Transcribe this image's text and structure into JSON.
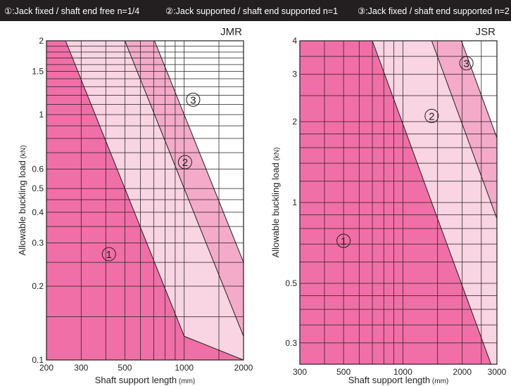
{
  "legend": [
    "①:Jack fixed / shaft end free   n=1/4",
    "②:Jack supported / shaft end supported   n=1",
    "③:Jack fixed / shaft end supported   n=2"
  ],
  "colors": {
    "header_bg": "#231f20",
    "region_1": "#f06fa6",
    "region_2": "#f9d4e2",
    "region_3": "#f4aac9",
    "grid": "#231f20"
  },
  "chart_data": [
    {
      "type": "area",
      "title": "JMR",
      "xlabel": "Shaft support length",
      "xunit": "(mm)",
      "ylabel": "Allowable buckling load",
      "yunit": "(kN)",
      "xscale": "log",
      "yscale": "log",
      "xlim": [
        200,
        2000
      ],
      "ylim": [
        0.1,
        2
      ],
      "x_ticks": [
        "200",
        "300",
        "500",
        "1000",
        "2000"
      ],
      "x_tick_values": [
        200,
        300,
        500,
        1000,
        2000
      ],
      "y_ticks": [
        "0.1",
        "0.2",
        "0.3",
        "0.4",
        "0.5",
        "0.6",
        "1",
        "1.5",
        "2"
      ],
      "y_tick_values": [
        0.1,
        0.2,
        0.3,
        0.4,
        0.5,
        0.6,
        1,
        1.5,
        2
      ],
      "x_grid": [
        200,
        300,
        400,
        500,
        600,
        700,
        800,
        900,
        1000,
        1500,
        2000
      ],
      "y_grid": [
        0.1,
        0.15,
        0.2,
        0.25,
        0.3,
        0.35,
        0.4,
        0.45,
        0.5,
        0.6,
        0.7,
        0.8,
        0.9,
        1,
        1.1,
        1.2,
        1.3,
        1.4,
        1.5,
        1.6,
        1.7,
        1.8,
        1.9,
        2
      ],
      "grid": true,
      "series": [
        {
          "name": "①",
          "points": [
            [
              250,
              2
            ],
            [
              1000,
              0.125
            ],
            [
              2000,
              0.1
            ]
          ],
          "label_at": [
            415,
            0.27
          ]
        },
        {
          "name": "②",
          "points": [
            [
              500,
              2
            ],
            [
              2000,
              0.125
            ]
          ],
          "label_at": [
            1010,
            0.64
          ]
        },
        {
          "name": "③",
          "points": [
            [
              707,
              2
            ],
            [
              2000,
              0.25
            ]
          ],
          "label_at": [
            1110,
            1.15
          ]
        }
      ]
    },
    {
      "type": "area",
      "title": "JSR",
      "xlabel": "Shaft support length",
      "xunit": "(mm)",
      "ylabel": "Allowable buckling load",
      "yunit": "(kN)",
      "xscale": "log",
      "yscale": "log",
      "xlim": [
        300,
        3000
      ],
      "ylim": [
        0.25,
        4
      ],
      "x_ticks": [
        "300",
        "500",
        "1000",
        "2000",
        "3000"
      ],
      "x_tick_values": [
        300,
        500,
        1000,
        2000,
        3000
      ],
      "y_ticks": [
        "0.3",
        "0.5",
        "1",
        "2",
        "3",
        "4"
      ],
      "y_tick_values": [
        0.3,
        0.5,
        1,
        2,
        3,
        4
      ],
      "x_grid": [
        300,
        400,
        500,
        600,
        700,
        800,
        900,
        1000,
        1500,
        2000,
        2500,
        3000
      ],
      "y_grid": [
        0.25,
        0.3,
        0.35,
        0.4,
        0.45,
        0.5,
        0.6,
        0.7,
        0.8,
        0.9,
        1,
        1.2,
        1.4,
        1.6,
        1.8,
        2,
        2.5,
        3,
        3.5,
        4
      ],
      "grid": true,
      "series": [
        {
          "name": "①",
          "points": [
            [
              700,
              4
            ],
            [
              2800,
              0.25
            ]
          ],
          "label_at": [
            500,
            0.72
          ]
        },
        {
          "name": "②",
          "points": [
            [
              1400,
              4
            ],
            [
              3000,
              0.87
            ]
          ],
          "label_at": [
            1400,
            2.1
          ]
        },
        {
          "name": "③",
          "points": [
            [
              1980,
              4
            ],
            [
              3000,
              1.74
            ]
          ],
          "label_at": [
            2100,
            3.3
          ]
        }
      ]
    }
  ]
}
